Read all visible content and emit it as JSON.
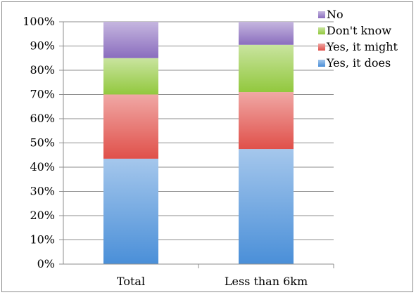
{
  "chart_data": {
    "type": "bar",
    "stacked": true,
    "categories": [
      "Total",
      "Less than 6km"
    ],
    "series": [
      {
        "name": "Yes, it does",
        "values": [
          43.5,
          47.5
        ],
        "color": "#4a8fd8"
      },
      {
        "name": "Yes, it might",
        "values": [
          26.5,
          23.5
        ],
        "color": "#e0504a"
      },
      {
        "name": "Don't know",
        "values": [
          15,
          19.5
        ],
        "color": "#92c83e"
      },
      {
        "name": "No",
        "values": [
          15,
          9.5
        ],
        "color": "#8a6dbe"
      }
    ],
    "yticks": [
      "0%",
      "10%",
      "20%",
      "30%",
      "40%",
      "50%",
      "60%",
      "70%",
      "80%",
      "90%",
      "100%"
    ],
    "ylim": [
      0,
      100
    ],
    "grid": true,
    "legend_position": "top-right",
    "title": "",
    "xlabel": "",
    "ylabel": ""
  }
}
